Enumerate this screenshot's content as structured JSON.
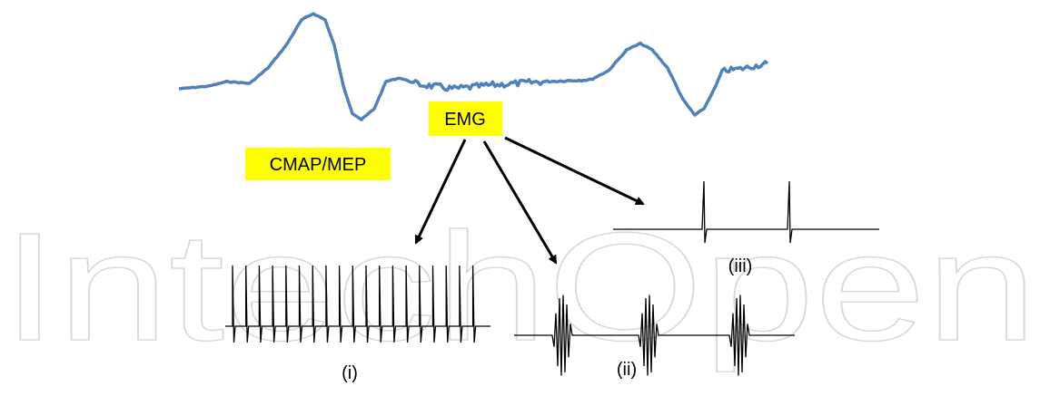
{
  "watermark": "IntechOpen",
  "labels": {
    "emg": "EMG",
    "cmap": "CMAP/MEP",
    "trace_i": "(i)",
    "trace_ii": "(ii)",
    "trace_iii": "(iii)"
  }
}
